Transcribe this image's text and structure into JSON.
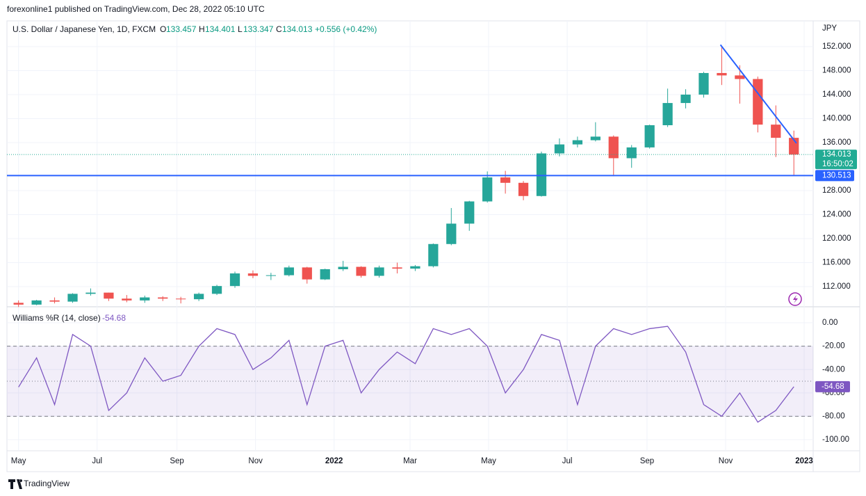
{
  "header": {
    "publisher": "forexonline1 published on TradingView.com, Dec 28, 2022 05:10 UTC"
  },
  "footer": {
    "brand": "TradingView"
  },
  "chart_data": [
    {
      "type": "candlestick",
      "title": "U.S. Dollar / Japanese Yen, 1D, FXCM",
      "legend": {
        "open_label": "O",
        "open": 133.457,
        "high_label": "H",
        "high": 134.401,
        "low_label": "L",
        "low": 133.347,
        "close_label": "C",
        "close": 134.013,
        "change": "+0.556 (+0.42%)"
      },
      "currency": "JPY",
      "x": [
        0,
        14,
        28,
        42,
        56,
        70,
        84,
        98,
        112,
        126,
        140,
        154,
        168,
        182,
        196,
        210,
        224,
        238,
        252,
        266,
        280,
        294,
        308,
        322,
        336,
        350,
        364,
        378,
        392,
        406,
        420,
        434,
        448,
        462,
        476,
        490,
        504,
        518,
        532,
        546,
        560,
        574,
        588,
        602
      ],
      "open": [
        109.3,
        109.0,
        109.7,
        109.5,
        110.8,
        111.0,
        110.0,
        109.7,
        110.2,
        110.0,
        109.9,
        110.8,
        112.1,
        114.2,
        113.8,
        113.9,
        115.2,
        113.2,
        114.9,
        115.3,
        113.8,
        115.2,
        115.0,
        115.4,
        119.1,
        122.5,
        126.2,
        130.2,
        129.3,
        127.1,
        134.2,
        135.7,
        136.4,
        137.0,
        133.4,
        135.2,
        138.9,
        142.6,
        144.0,
        147.6,
        147.2,
        146.6,
        139.0,
        136.8
      ],
      "high": [
        109.7,
        109.8,
        110.2,
        110.9,
        111.7,
        111.0,
        110.6,
        110.5,
        110.4,
        110.3,
        111.0,
        112.3,
        114.5,
        114.7,
        114.3,
        115.5,
        115.3,
        115.0,
        116.3,
        115.4,
        115.5,
        116.0,
        115.6,
        119.2,
        125.1,
        126.3,
        131.2,
        131.3,
        129.6,
        134.5,
        136.7,
        137.0,
        139.4,
        137.2,
        135.6,
        139.0,
        145.0,
        144.9,
        147.8,
        151.9,
        148.9,
        147.0,
        142.2,
        138.0
      ],
      "low": [
        108.6,
        108.9,
        109.2,
        109.3,
        110.5,
        109.6,
        109.4,
        109.3,
        109.6,
        109.2,
        109.6,
        110.6,
        111.8,
        113.4,
        113.1,
        113.7,
        112.5,
        113.1,
        114.6,
        113.5,
        113.5,
        114.2,
        114.6,
        115.2,
        118.9,
        121.3,
        126.0,
        127.5,
        126.4,
        127.0,
        133.7,
        135.2,
        136.2,
        130.4,
        131.8,
        135.0,
        138.6,
        141.7,
        143.5,
        145.6,
        142.5,
        137.7,
        133.6,
        130.5
      ],
      "close": [
        109.0,
        109.7,
        109.5,
        110.8,
        111.0,
        110.0,
        109.7,
        110.2,
        110.0,
        109.9,
        110.8,
        112.1,
        114.2,
        113.8,
        113.9,
        115.2,
        113.2,
        114.9,
        115.3,
        113.8,
        115.2,
        115.0,
        115.4,
        119.1,
        122.5,
        126.2,
        130.2,
        129.3,
        127.1,
        134.2,
        135.7,
        136.4,
        137.0,
        133.4,
        135.2,
        138.9,
        142.6,
        144.0,
        147.6,
        147.2,
        146.6,
        139.0,
        136.8,
        134.0
      ],
      "up_color": "#26a69a",
      "down_color": "#ef5350",
      "xlim": [
        -9,
        617
      ],
      "ylim": [
        108.64,
        156.29
      ],
      "yticks": [
        {
          "value": 112,
          "label": "112.000"
        },
        {
          "value": 116,
          "label": "116.000"
        },
        {
          "value": 120,
          "label": "120.000"
        },
        {
          "value": 124,
          "label": "124.000"
        },
        {
          "value": 128,
          "label": "128.000"
        },
        {
          "value": 136,
          "label": "136.000"
        },
        {
          "value": 140,
          "label": "140.000"
        },
        {
          "value": 144,
          "label": "144.000"
        },
        {
          "value": 148,
          "label": "148.000"
        },
        {
          "value": 152,
          "label": "152.000"
        }
      ],
      "last_price": 134.013,
      "countdown": "16:50:02",
      "last_color": "#22ab94",
      "horizontal_line": {
        "value": 130.513,
        "color": "#2962ff"
      },
      "trendline": {
        "x": [
          545,
          604
        ],
        "y": [
          152.3,
          135.9
        ],
        "color": "#2962ff"
      },
      "grid": true
    },
    {
      "type": "line",
      "title": "Williams %R (14, close)",
      "last_value": -54.68,
      "color": "#7e57c2",
      "x": [
        0,
        14,
        28,
        42,
        56,
        70,
        84,
        98,
        112,
        126,
        140,
        154,
        168,
        182,
        196,
        210,
        224,
        238,
        252,
        266,
        280,
        294,
        308,
        322,
        336,
        350,
        364,
        378,
        392,
        406,
        420,
        434,
        448,
        462,
        476,
        490,
        504,
        518,
        532,
        546,
        560,
        574,
        588,
        602
      ],
      "values": [
        -55,
        -30,
        -70,
        -10,
        -20,
        -75,
        -60,
        -30,
        -50,
        -45,
        -20,
        -5,
        -10,
        -40,
        -30,
        -15,
        -70,
        -20,
        -15,
        -60,
        -40,
        -25,
        -35,
        -5,
        -10,
        -5,
        -20,
        -60,
        -40,
        -10,
        -15,
        -70,
        -20,
        -5,
        -10,
        -5,
        -3,
        -25,
        -70,
        -80,
        -60,
        -85,
        -75,
        -54.68
      ],
      "band": [
        -20,
        -80
      ],
      "midline": -50,
      "xlim": [
        -9,
        617
      ],
      "ylim": [
        -109.5,
        13.7
      ],
      "yticks": [
        {
          "value": 0,
          "label": "0.00"
        },
        {
          "value": -20,
          "label": "-20.00"
        },
        {
          "value": -40,
          "label": "-40.00"
        },
        {
          "value": -60,
          "label": "-60.00"
        },
        {
          "value": -80,
          "label": "-80.00"
        },
        {
          "value": -100,
          "label": "-100.00"
        }
      ],
      "xticks": [
        {
          "value": 0,
          "label": "May"
        },
        {
          "value": 61,
          "label": "Jul"
        },
        {
          "value": 123,
          "label": "Sep"
        },
        {
          "value": 184,
          "label": "Nov"
        },
        {
          "value": 245,
          "label": "2022"
        },
        {
          "value": 304,
          "label": "Mar"
        },
        {
          "value": 365,
          "label": "May"
        },
        {
          "value": 426,
          "label": "Jul"
        },
        {
          "value": 488,
          "label": "Sep"
        },
        {
          "value": 549,
          "label": "Nov"
        },
        {
          "value": 610,
          "label": "2023"
        }
      ],
      "grid": true
    }
  ]
}
